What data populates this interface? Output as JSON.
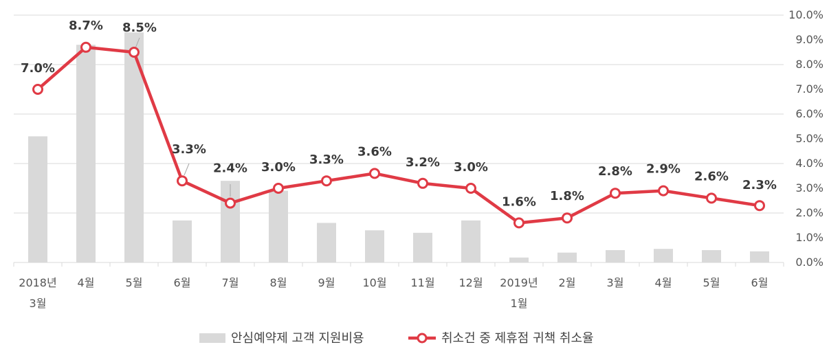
{
  "chart_data": {
    "type": "bar+line",
    "categories": [
      [
        "2018년",
        "3월"
      ],
      [
        "4월"
      ],
      [
        "5월"
      ],
      [
        "6월"
      ],
      [
        "7월"
      ],
      [
        "8월"
      ],
      [
        "9월"
      ],
      [
        "10월"
      ],
      [
        "11월"
      ],
      [
        "12월"
      ],
      [
        "2019년",
        "1월"
      ],
      [
        "2월"
      ],
      [
        "3월"
      ],
      [
        "4월"
      ],
      [
        "5월"
      ],
      [
        "6월"
      ]
    ],
    "series": [
      {
        "name": "안심예약제 고객 지원비용",
        "type": "bar",
        "axis": "left (unlabeled)",
        "values": [
          5.1,
          8.8,
          9.3,
          1.7,
          3.3,
          2.9,
          1.6,
          1.3,
          1.2,
          1.7,
          0.2,
          0.4,
          0.5,
          0.55,
          0.5,
          0.45
        ],
        "color": "#d9d9d9"
      },
      {
        "name": "취소건 중 제휴점 귀책 취소율",
        "type": "line",
        "axis": "right",
        "values": [
          7.0,
          8.7,
          8.5,
          3.3,
          2.4,
          3.0,
          3.3,
          3.6,
          3.2,
          3.0,
          1.6,
          1.8,
          2.8,
          2.9,
          2.6,
          2.3
        ],
        "labels": [
          "7.0%",
          "8.7%",
          "8.5%",
          "3.3%",
          "2.4%",
          "3.0%",
          "3.3%",
          "3.6%",
          "3.2%",
          "3.0%",
          "1.6%",
          "1.8%",
          "2.8%",
          "2.9%",
          "2.6%",
          "2.3%"
        ],
        "color": "#e03a45"
      }
    ],
    "y_right": {
      "ticks": [
        "0.0%",
        "1.0%",
        "2.0%",
        "3.0%",
        "4.0%",
        "5.0%",
        "6.0%",
        "7.0%",
        "8.0%",
        "9.0%",
        "10.0%"
      ],
      "ylim": [
        0,
        10
      ]
    },
    "grid": true,
    "legend_position": "bottom"
  }
}
